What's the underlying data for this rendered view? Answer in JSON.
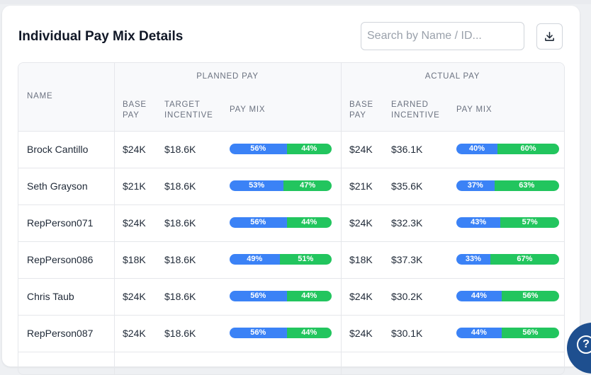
{
  "title": "Individual Pay Mix Details",
  "search": {
    "placeholder": "Search by Name / ID..."
  },
  "download_icon": "download-icon",
  "headers": {
    "name": "NAME",
    "planned_group": "PLANNED PAY",
    "actual_group": "ACTUAL PAY",
    "planned": {
      "base": "BASE PAY",
      "incentive": "TARGET INCENTIVE",
      "mix": "PAY MIX"
    },
    "actual": {
      "base": "BASE PAY",
      "incentive": "EARNED INCENTIVE",
      "mix": "PAY MIX"
    }
  },
  "colors": {
    "base_segment": "#3b82f6",
    "incentive_segment": "#22c55e"
  },
  "rows": [
    {
      "name": "Brock Cantillo",
      "p_base": "$24K",
      "p_inc": "$18.6K",
      "p_mix": [
        56,
        44
      ],
      "a_base": "$24K",
      "a_inc": "$36.1K",
      "a_mix": [
        40,
        60
      ]
    },
    {
      "name": "Seth Grayson",
      "p_base": "$21K",
      "p_inc": "$18.6K",
      "p_mix": [
        53,
        47
      ],
      "a_base": "$21K",
      "a_inc": "$35.6K",
      "a_mix": [
        37,
        63
      ]
    },
    {
      "name": "RepPerson071",
      "p_base": "$24K",
      "p_inc": "$18.6K",
      "p_mix": [
        56,
        44
      ],
      "a_base": "$24K",
      "a_inc": "$32.3K",
      "a_mix": [
        43,
        57
      ]
    },
    {
      "name": "RepPerson086",
      "p_base": "$18K",
      "p_inc": "$18.6K",
      "p_mix": [
        49,
        51
      ],
      "a_base": "$18K",
      "a_inc": "$37.3K",
      "a_mix": [
        33,
        67
      ]
    },
    {
      "name": "Chris Taub",
      "p_base": "$24K",
      "p_inc": "$18.6K",
      "p_mix": [
        56,
        44
      ],
      "a_base": "$24K",
      "a_inc": "$30.2K",
      "a_mix": [
        44,
        56
      ]
    },
    {
      "name": "RepPerson087",
      "p_base": "$24K",
      "p_inc": "$18.6K",
      "p_mix": [
        56,
        44
      ],
      "a_base": "$24K",
      "a_inc": "$30.1K",
      "a_mix": [
        44,
        56
      ]
    }
  ],
  "help_icon": "help-icon"
}
